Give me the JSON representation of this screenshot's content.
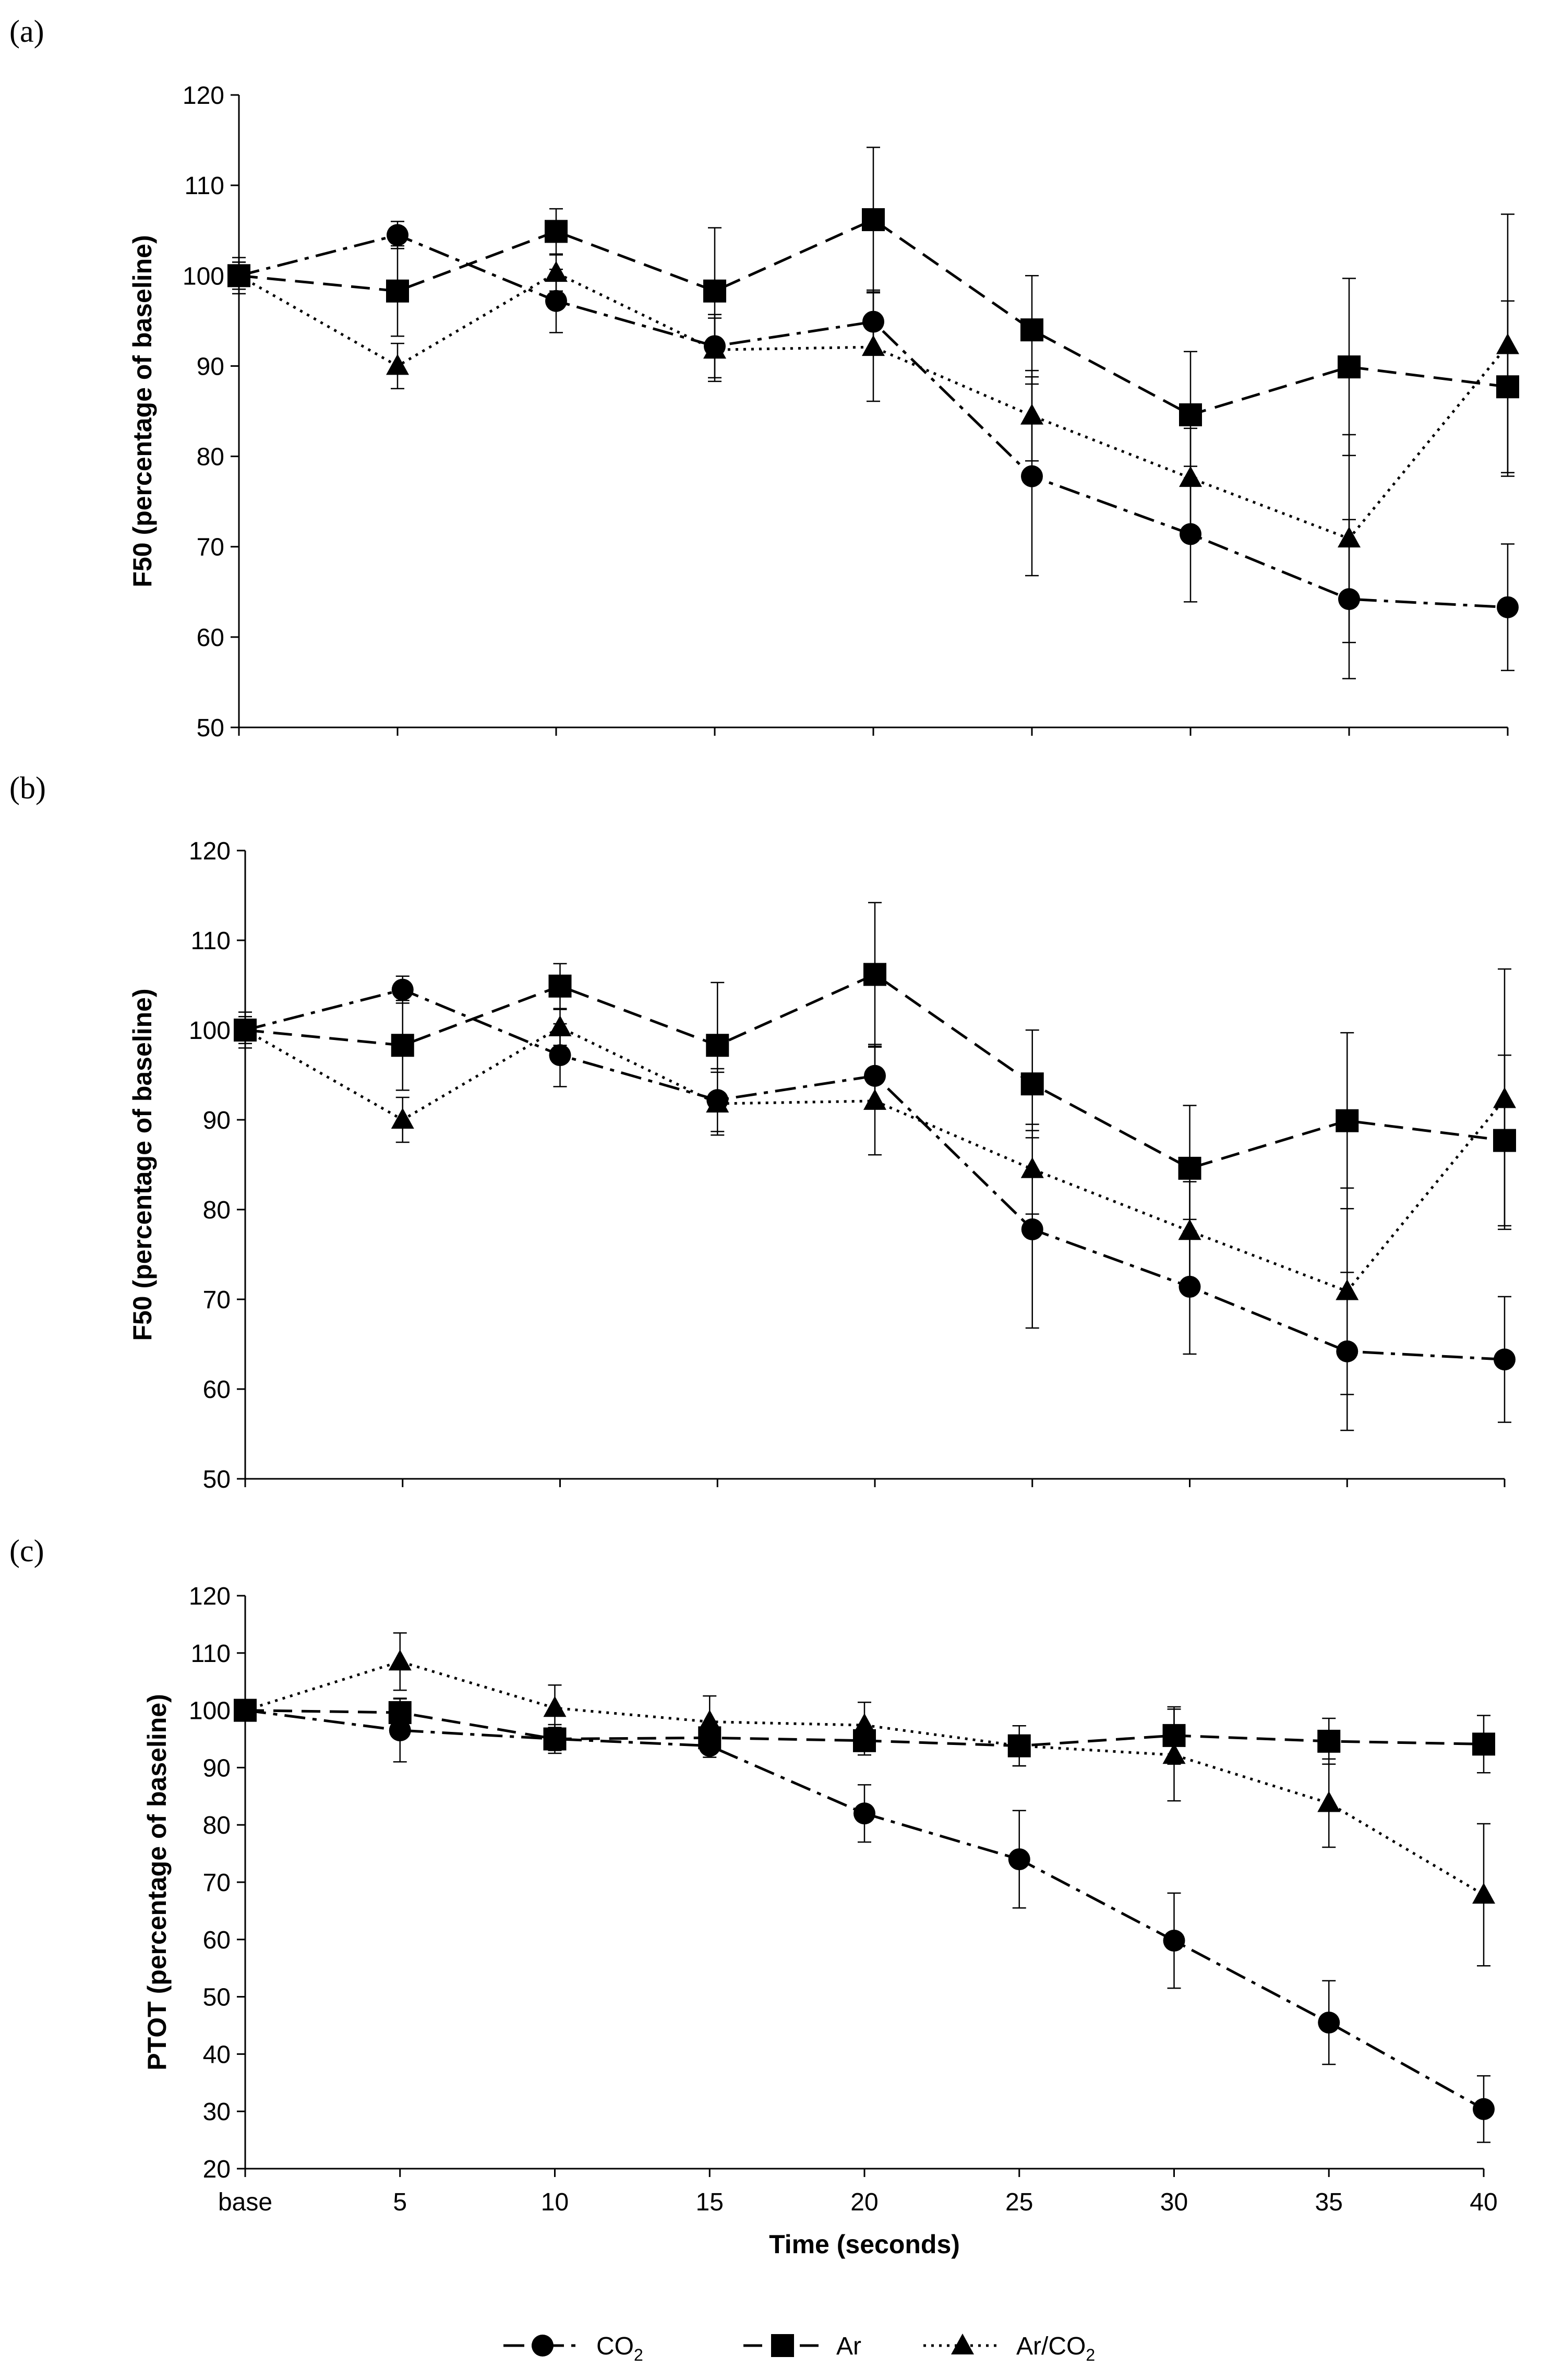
{
  "legend": [
    {
      "name": "CO",
      "sub": "2",
      "marker": "circle",
      "dash": "40,14,8,14"
    },
    {
      "name": "Ar",
      "sub": "",
      "marker": "square",
      "dash": "36,18"
    },
    {
      "name": "Ar/CO",
      "sub": "2",
      "marker": "triangle",
      "dash": "5,10"
    }
  ],
  "chart_data": [
    {
      "type": "line",
      "panel": "(a)",
      "ylabel": "F50 (percentage of baseline)",
      "xlabel": "",
      "categories": [
        "base",
        "5",
        "10",
        "15",
        "20",
        "25",
        "30",
        "35",
        "40"
      ],
      "show_xtick_labels": false,
      "ylim": [
        50,
        120
      ],
      "yticks": [
        50,
        60,
        70,
        80,
        90,
        100,
        110,
        120
      ],
      "series": [
        {
          "name": "CO2",
          "values": [
            100,
            104.5,
            97.2,
            92.2,
            94.9,
            77.8,
            71.4,
            64.2,
            63.3
          ],
          "errors": [
            1.5,
            1.5,
            3.5,
            3.5,
            3.5,
            11.0,
            7.5,
            8.8,
            7.0
          ]
        },
        {
          "name": "Ar",
          "values": [
            100,
            98.3,
            104.9,
            98.3,
            106.2,
            94.0,
            84.6,
            89.9,
            87.7
          ],
          "errors": [
            2.0,
            5.0,
            2.5,
            7.0,
            8.0,
            6.0,
            7.0,
            9.8,
            9.5
          ]
        },
        {
          "name": "Ar/CO2",
          "values": [
            100,
            90.0,
            100.3,
            91.8,
            92.1,
            84.5,
            77.6,
            70.9,
            92.3
          ],
          "errors": [
            1.5,
            2.5,
            2.0,
            3.5,
            6.0,
            5.0,
            5.5,
            11.5,
            14.5
          ]
        }
      ]
    },
    {
      "type": "line",
      "panel": "(b)",
      "ylabel": "F50 (percentage of baseline)",
      "xlabel": "",
      "categories": [
        "base",
        "5",
        "10",
        "15",
        "20",
        "25",
        "30",
        "35",
        "40"
      ],
      "show_xtick_labels": false,
      "ylim": [
        50,
        120
      ],
      "yticks": [
        50,
        60,
        70,
        80,
        90,
        100,
        110,
        120
      ],
      "series": [
        {
          "name": "CO2",
          "values": [
            100,
            104.5,
            97.2,
            92.2,
            94.9,
            77.8,
            71.4,
            64.2,
            63.3
          ],
          "errors": [
            1.5,
            1.5,
            3.5,
            3.5,
            3.5,
            11.0,
            7.5,
            8.8,
            7.0
          ]
        },
        {
          "name": "Ar",
          "values": [
            100,
            98.3,
            104.9,
            98.3,
            106.2,
            94.0,
            84.6,
            89.9,
            87.7
          ],
          "errors": [
            2.0,
            5.0,
            2.5,
            7.0,
            8.0,
            6.0,
            7.0,
            9.8,
            9.5
          ]
        },
        {
          "name": "Ar/CO2",
          "values": [
            100,
            90.0,
            100.3,
            91.8,
            92.1,
            84.5,
            77.6,
            70.9,
            92.3
          ],
          "errors": [
            1.5,
            2.5,
            2.0,
            3.5,
            6.0,
            5.0,
            5.5,
            11.5,
            14.5
          ]
        }
      ]
    },
    {
      "type": "line",
      "panel": "(c)",
      "ylabel": "PTOT (percentage of baseline)",
      "xlabel": "Time (seconds)",
      "categories": [
        "base",
        "5",
        "10",
        "15",
        "20",
        "25",
        "30",
        "35",
        "40"
      ],
      "show_xtick_labels": true,
      "ylim": [
        20,
        120
      ],
      "yticks": [
        20,
        30,
        40,
        50,
        60,
        70,
        80,
        90,
        100,
        110,
        120
      ],
      "series": [
        {
          "name": "CO2",
          "values": [
            100,
            96.5,
            95.0,
            93.8,
            82.0,
            74.0,
            59.8,
            45.5,
            30.4
          ],
          "errors": [
            1.5,
            5.5,
            2.0,
            2.0,
            5.0,
            8.5,
            8.3,
            7.3,
            5.8
          ]
        },
        {
          "name": "Ar",
          "values": [
            100,
            99.6,
            95.0,
            95.2,
            94.7,
            93.8,
            95.6,
            94.6,
            94.1
          ],
          "errors": [
            1.5,
            2.5,
            2.5,
            2.5,
            2.5,
            3.5,
            5.0,
            4.0,
            5.0
          ]
        },
        {
          "name": "Ar/CO2",
          "values": [
            100,
            108.5,
            100.4,
            98.0,
            97.4,
            93.8,
            92.2,
            83.8,
            67.8
          ],
          "errors": [
            1.5,
            5.0,
            4.0,
            4.5,
            4.0,
            3.5,
            8.0,
            7.7,
            12.4
          ]
        }
      ]
    }
  ]
}
